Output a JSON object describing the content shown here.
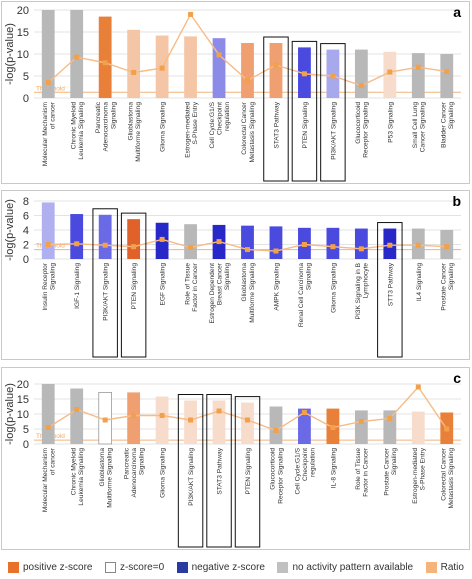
{
  "chart_data": [
    {
      "panel": "a",
      "type": "bar",
      "ylabel": "-log(p-value)",
      "ylim": [
        0,
        20
      ],
      "yticks": [
        0,
        5,
        10,
        15,
        20
      ],
      "threshold_label": "Threshold",
      "threshold": 1.3,
      "categories": [
        "Molecular Mechanism of cancer",
        "Chronic Myeloid Leukemia Signaling",
        "Pancreatic Adenocarcinoma Signaling",
        "Glioblastoma Multiforme Signaling",
        "Glioma Signaling",
        "Estrogen-mediated S-Phase Entry",
        "Cell Cycle:G1/S Checkpoint regulation",
        "Colorectal Cancer Metastasis Signaling",
        "STAT3 Pathway",
        "PTEN Signaling",
        "PI3K/AKT Signaling",
        "Glucocorticoid Receptor Signaling",
        "P53 Signaling",
        "Small Cell Lung Cancer Signaling",
        "Bladder Cancer Signaling"
      ],
      "values": [
        22,
        20,
        18.5,
        15.5,
        14.2,
        14,
        13.6,
        12.5,
        12.5,
        11.5,
        11,
        11,
        10.5,
        10.2,
        10
      ],
      "ratio": [
        3.5,
        9.3,
        8,
        5.8,
        6.8,
        19,
        9.8,
        4,
        7.5,
        5.5,
        5,
        2.8,
        5.9,
        7,
        6
      ],
      "colors": [
        "#b8b8b8",
        "#b8b8b8",
        "#e8803a",
        "#f5c6a5",
        "#f5c6a5",
        "#f5c6a5",
        "#8c8ce8",
        "#f0a070",
        "#f0a070",
        "#4a4adf",
        "#a8a8ec",
        "#b8b8b8",
        "#f8dccb",
        "#b8b8b8",
        "#b8b8b8"
      ],
      "boxed": [
        8,
        9,
        10
      ]
    },
    {
      "panel": "b",
      "type": "bar",
      "ylabel": "-log(p-value)",
      "ylim": [
        0,
        8
      ],
      "yticks": [
        0,
        2,
        4,
        6,
        8
      ],
      "threshold_label": "Threshold",
      "threshold": 1.3,
      "categories": [
        "Insulin Receptor Signaling",
        "IGF-1 Signaling",
        "PI3K/AKT Signaling",
        "PTEN Signaling",
        "EGF Signaling",
        "Role of Tissue Factor in Cancer",
        "Estrogen Dependent Breast Cancer Signaling",
        "Glioblastoma Multiforme Signaling",
        "AMPK Signaling",
        "Renal Cell Carcinoma Signaling",
        "Glioma Signaling",
        "PI3K Signaling in B Lymphocyte",
        "STT3 Pathway",
        "IL4 Signaling",
        "Prostate Cancer Signaling"
      ],
      "values": [
        7.8,
        6.2,
        6.1,
        5.5,
        5,
        4.8,
        4.7,
        4.6,
        4.5,
        4.3,
        4.3,
        4.2,
        4.2,
        4.2,
        4
      ],
      "ratio": [
        2,
        2.1,
        1.9,
        1.7,
        2.7,
        1.6,
        2.4,
        1.3,
        1.1,
        2,
        1.7,
        1.4,
        1.9,
        1.9,
        1.7
      ],
      "colors": [
        "#b0b0f0",
        "#4a4adf",
        "#6a6ae6",
        "#e0622a",
        "#2828c8",
        "#b8b8b8",
        "#2828c8",
        "#4a4adf",
        "#4a4adf",
        "#4a4adf",
        "#4a4adf",
        "#4a4adf",
        "#2828c8",
        "#b8b8b8",
        "#b8b8b8"
      ],
      "boxed": [
        2,
        3,
        12
      ]
    },
    {
      "panel": "c",
      "type": "bar",
      "ylabel": "-log(p-value)",
      "ylim": [
        0,
        20
      ],
      "yticks": [
        0,
        5,
        10,
        15,
        20
      ],
      "threshold_label": "Threshold",
      "threshold": 1.3,
      "categories": [
        "Molecular Mechanism of cancer",
        "Chronic Myeloid Leukemia Signaling",
        "Glioblastoma Multiforme Signaling",
        "Pancreatic Adenocarcinoma Signaling",
        "Glioma Signaling",
        "PI3K/AKT Signaling",
        "STAT3 Pathway",
        "PTEN Signaling",
        "Glucocorticoid Receptor Signaling",
        "Cell Cycle:G1/S Checkpoint regulation",
        "IL-8 Signaling",
        "Role of Tissue Factor in Cancer",
        "Prostate Cancer Signaling",
        "Estrogen-mediated S-Phase Entry",
        "Colorectal Cancer Metastasis Signaling"
      ],
      "values": [
        22,
        18.5,
        17.2,
        17.2,
        15.8,
        14.5,
        14.5,
        13.8,
        12.5,
        11.8,
        11.8,
        11.2,
        11.2,
        10.8,
        10.5
      ],
      "ratio": [
        5.5,
        11.5,
        8,
        9.5,
        9.5,
        8,
        11,
        8,
        4.5,
        10.5,
        5.5,
        7.5,
        8.5,
        19,
        5
      ],
      "colors": [
        "#b8b8b8",
        "#b8b8b8",
        "#ffffff",
        "#f0a070",
        "#f8dccb",
        "#f8dccb",
        "#f8dccb",
        "#f8dccb",
        "#b8b8b8",
        "#6a6ae6",
        "#e8803a",
        "#b8b8b8",
        "#b8b8b8",
        "#f8dccb",
        "#e8803a"
      ],
      "boxed": [
        5,
        6,
        7
      ]
    }
  ],
  "legend": [
    {
      "label": "positive z-score",
      "color": "#e8722c"
    },
    {
      "label": "z-score=0",
      "color": "#ffffff"
    },
    {
      "label": "negative z-score",
      "color": "#2a3aa0"
    },
    {
      "label": "no activity pattern available",
      "color": "#c0c0c0"
    },
    {
      "label": "Ratio",
      "color": "#f5b47a"
    }
  ],
  "panel_letters": [
    "a",
    "b",
    "c"
  ]
}
